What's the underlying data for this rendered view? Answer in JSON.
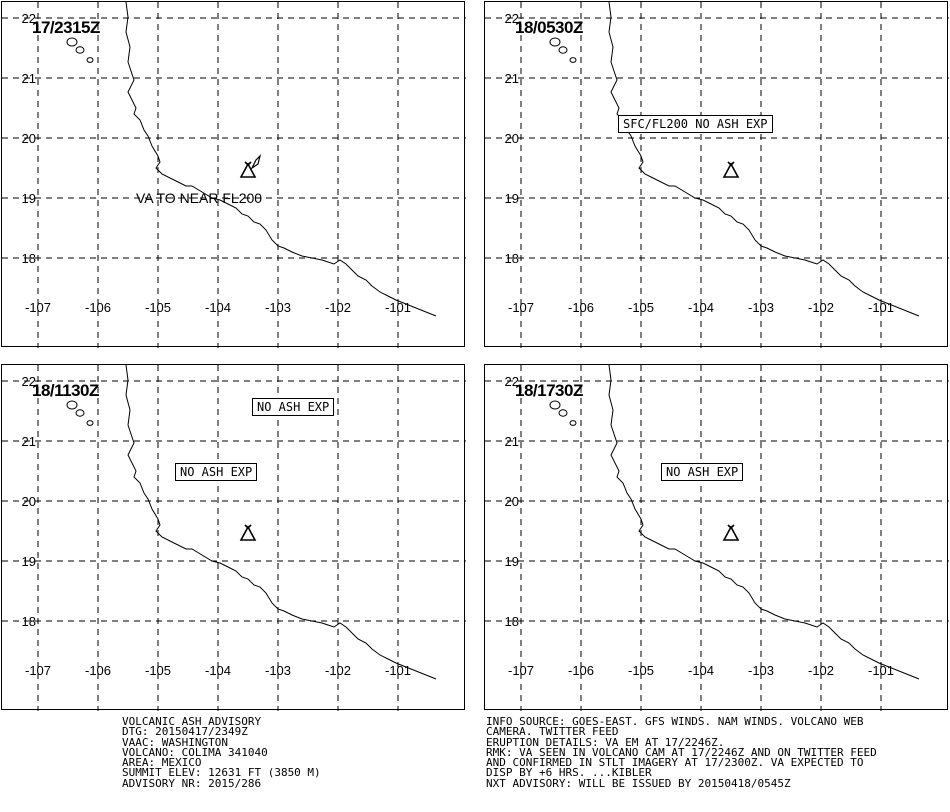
{
  "panels": [
    {
      "time": "17/2315Z",
      "boxes": [],
      "text": "VA TO NEAR FL200"
    },
    {
      "time": "18/0530Z",
      "boxes": [
        "SFC/FL200 NO ASH EXP"
      ],
      "text": ""
    },
    {
      "time": "18/1130Z",
      "boxes": [
        "NO ASH EXP",
        "NO ASH EXP"
      ],
      "text": ""
    },
    {
      "time": "18/1730Z",
      "boxes": [
        "NO ASH EXP"
      ],
      "text": ""
    }
  ],
  "axes": {
    "lat_labels": [
      "22",
      "21",
      "20",
      "19",
      "18"
    ],
    "lon_labels": [
      "-107",
      "-106",
      "-105",
      "-104",
      "-103",
      "-102",
      "-101"
    ]
  },
  "advisory_left": [
    "VOLCANIC ASH ADVISORY",
    "DTG: 20150417/2349Z",
    "VAAC: WASHINGTON",
    "VOLCANO: COLIMA 341040",
    "AREA: MEXICO",
    "SUMMIT ELEV: 12631 FT (3850 M)",
    "ADVISORY NR: 2015/286"
  ],
  "advisory_right": [
    "INFO SOURCE: GOES-EAST. GFS WINDS. NAM WINDS. VOLCANO WEB",
    "CAMERA. TWITTER FEED",
    "ERUPTION DETAILS: VA EM AT 17/2246Z.",
    "RMK: VA SEEN IN VOLCANO CAM AT 17/2246Z AND ON TWITTER FEED",
    "AND CONFIRMED IN STLT IMAGERY AT 17/2300Z. VA EXPECTED TO",
    "DISP BY +6 HRS. ...KIBLER",
    "NXT ADVISORY: WILL BE ISSUED BY 20150418/0545Z"
  ],
  "colors": {
    "line": "#000000",
    "background": "#ffffff"
  },
  "icons": {
    "volcano": "volcano-icon"
  }
}
